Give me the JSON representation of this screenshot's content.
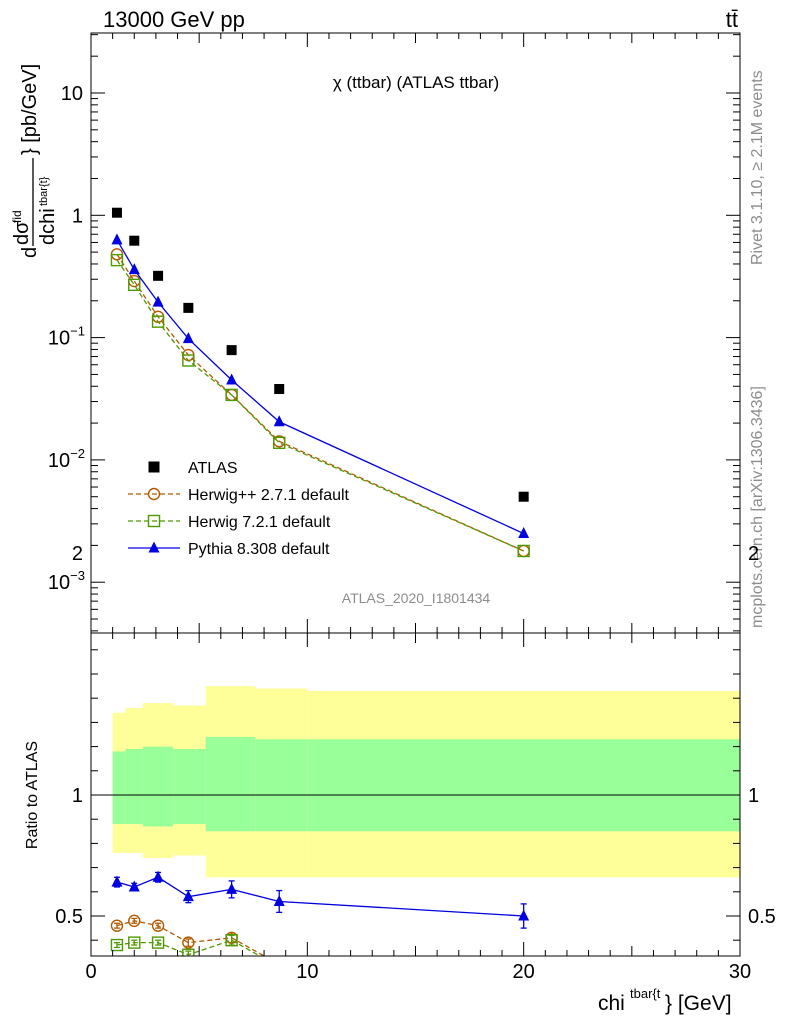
{
  "header": {
    "energy_label": "13000 GeV pp",
    "process_label": "tt̄"
  },
  "main_title": "χ (ttbar) (ATLAS ttbar)",
  "analysis_id": "ATLAS_2020_I1801434",
  "side_labels": {
    "rivet": "Rivet 3.1.10, ≥ 2.1M events",
    "mcplots": "mcplots.cern.ch [arXiv:1306.3436]"
  },
  "axes": {
    "y_main_label": "dσ^fid / dchi^tbar{t} [pb/GeV]",
    "y_ratio_label": "Ratio to ATLAS",
    "x_label": "chi^tbar{t} [GeV]"
  },
  "colors": {
    "atlas": "#000000",
    "herwigpp": "#b35900",
    "herwig7": "#4d9900",
    "pythia": "#0000e0",
    "band_outer": "#ffff99",
    "band_inner": "#99ff99"
  },
  "chart_data": [
    {
      "type": "scatter",
      "title": "χ (ttbar) (ATLAS ttbar)",
      "xlabel": "chi^tbar{t} [GeV]",
      "ylabel": "dσ^fid/dchi^tbar{t} [pb/GeV]",
      "xlim": [
        0,
        30
      ],
      "ylim": [
        0.0003,
        30
      ],
      "yscale": "log",
      "legend_position": "lower-left",
      "x_ticks": [
        "0",
        "10",
        "20",
        "30"
      ],
      "y_ticks": [
        "10^-3",
        "10^-2",
        "10^-1",
        "1",
        "10"
      ],
      "series": [
        {
          "name": "ATLAS",
          "marker": "square-filled",
          "x": [
            1.2,
            2.0,
            3.1,
            4.5,
            6.5,
            8.7,
            20.0
          ],
          "y": [
            1.05,
            0.62,
            0.32,
            0.175,
            0.079,
            0.038,
            0.005
          ]
        },
        {
          "name": "Herwig++ 2.7.1 default",
          "marker": "circle-open",
          "line": "dashed",
          "x": [
            1.2,
            2.0,
            3.1,
            4.5,
            6.5,
            8.7,
            20.0
          ],
          "y": [
            0.48,
            0.29,
            0.148,
            0.072,
            0.034,
            0.0142,
            0.0018
          ]
        },
        {
          "name": "Herwig 7.2.1 default",
          "marker": "square-open",
          "line": "dashed",
          "x": [
            1.2,
            2.0,
            3.1,
            4.5,
            6.5,
            8.7,
            20.0
          ],
          "y": [
            0.43,
            0.27,
            0.135,
            0.065,
            0.034,
            0.0138,
            0.0018
          ]
        },
        {
          "name": "Pythia 8.308 default",
          "marker": "triangle-filled",
          "line": "solid",
          "x": [
            1.2,
            2.0,
            3.1,
            4.5,
            6.5,
            8.7,
            20.0
          ],
          "y": [
            0.63,
            0.36,
            0.195,
            0.098,
            0.045,
            0.0205,
            0.0025
          ]
        }
      ]
    },
    {
      "type": "line",
      "ylabel": "Ratio to ATLAS",
      "xlabel": "chi^tbar{t} [GeV]",
      "xlim": [
        0,
        30
      ],
      "ylim": [
        0.35,
        2.35
      ],
      "y_ticks": [
        "0.5",
        "1",
        "2"
      ],
      "x_ticks": [
        "0",
        "10",
        "20",
        "30"
      ],
      "bands": {
        "bin_edges": [
          1,
          1.6,
          2.4,
          3.8,
          5.3,
          7.6,
          10,
          30
        ],
        "outer_upper": [
          1.34,
          1.36,
          1.38,
          1.37,
          1.45,
          1.44,
          1.43
        ],
        "outer_lower": [
          0.76,
          0.76,
          0.74,
          0.75,
          0.66,
          0.66,
          0.66
        ],
        "inner_upper": [
          1.18,
          1.19,
          1.2,
          1.19,
          1.24,
          1.23,
          1.23
        ],
        "inner_lower": [
          0.88,
          0.88,
          0.87,
          0.88,
          0.85,
          0.85,
          0.85
        ]
      },
      "series": [
        {
          "name": "Herwig++ 2.7.1 default",
          "marker": "circle-open",
          "line": "dashed",
          "x": [
            1.2,
            2.0,
            3.1,
            4.5,
            6.5,
            8.7
          ],
          "y": [
            0.46,
            0.48,
            0.46,
            0.39,
            0.41,
            0.3
          ],
          "err": [
            0.01,
            0.01,
            0.01,
            0.015,
            0.02,
            0.03
          ]
        },
        {
          "name": "Herwig 7.2.1 default",
          "marker": "square-open",
          "line": "dashed",
          "x": [
            1.2,
            2.0,
            3.1,
            4.5,
            6.5,
            8.7
          ],
          "y": [
            0.38,
            0.39,
            0.39,
            0.34,
            0.4,
            0.29
          ],
          "err": [
            0.01,
            0.01,
            0.01,
            0.015,
            0.02,
            0.03
          ]
        },
        {
          "name": "Pythia 8.308 default",
          "marker": "triangle-filled",
          "line": "solid",
          "x": [
            1.2,
            2.0,
            3.1,
            4.5,
            6.5,
            8.7,
            20.0
          ],
          "y": [
            0.64,
            0.62,
            0.66,
            0.58,
            0.61,
            0.56,
            0.5
          ],
          "err": [
            0.02,
            0.015,
            0.02,
            0.025,
            0.035,
            0.045,
            0.05
          ]
        }
      ]
    }
  ]
}
